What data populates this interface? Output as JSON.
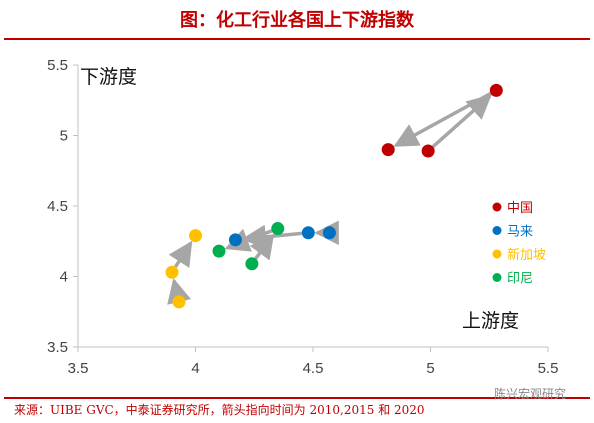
{
  "title": "图：化工行业各国上下游指数",
  "source": "来源：UIBE GVC，中泰证券研究所，箭头指向时间为 2010,2015 和 2020",
  "watermark": "陈兴宏观研究",
  "colors": {
    "accent": "#C00000",
    "arrow": "#A6A6A6",
    "axis": "#C0C0C0"
  },
  "chart_data": {
    "type": "scatter",
    "xlabel": "上游度",
    "ylabel": "下游度",
    "xlim": [
      3.5,
      5.5
    ],
    "ylim": [
      3.5,
      5.5
    ],
    "xticks": [
      "3.5",
      "4",
      "4.5",
      "5",
      "5.5"
    ],
    "yticks": [
      "3.5",
      "4",
      "4.5",
      "5",
      "5.5"
    ],
    "grid": false,
    "legend_position": "right",
    "series": [
      {
        "name": "中国",
        "color": "#C00000",
        "points": [
          {
            "x": 4.99,
            "y": 4.89
          },
          {
            "x": 5.28,
            "y": 5.32
          },
          {
            "x": 4.82,
            "y": 4.9
          }
        ]
      },
      {
        "name": "马来",
        "color": "#0070C0",
        "points": [
          {
            "x": 4.57,
            "y": 4.31
          },
          {
            "x": 4.48,
            "y": 4.31
          },
          {
            "x": 4.17,
            "y": 4.26
          }
        ]
      },
      {
        "name": "新加坡",
        "color": "#FFC000",
        "points": [
          {
            "x": 3.93,
            "y": 3.82
          },
          {
            "x": 3.9,
            "y": 4.03
          },
          {
            "x": 4.0,
            "y": 4.29
          }
        ]
      },
      {
        "name": "印尼",
        "color": "#00B050",
        "points": [
          {
            "x": 4.24,
            "y": 4.09
          },
          {
            "x": 4.35,
            "y": 4.34
          },
          {
            "x": 4.1,
            "y": 4.18
          }
        ]
      }
    ]
  }
}
